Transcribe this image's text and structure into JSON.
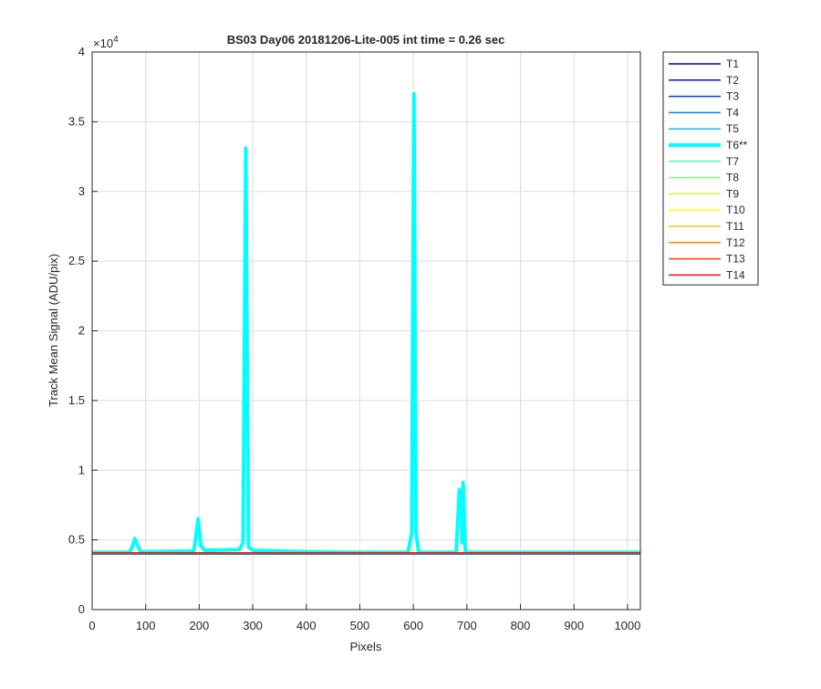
{
  "chart_data": {
    "type": "line",
    "title": "BS03 Day06 20181206-Lite-005 int time = 0.26 sec",
    "xlabel": "Pixels",
    "ylabel": "Track Mean Signal (ADU/pix)",
    "y_multiplier": {
      "base": "×10",
      "exponent": "4"
    },
    "xlim": [
      0,
      1024
    ],
    "xticks": [
      0,
      100,
      200,
      300,
      400,
      500,
      600,
      700,
      800,
      900,
      1000
    ],
    "ylim": [
      0,
      40000
    ],
    "yticks": [
      0,
      {
        "value": 5000,
        "label": "0.5"
      },
      {
        "value": 10000,
        "label": "1"
      },
      {
        "value": 15000,
        "label": "1.5"
      },
      {
        "value": 20000,
        "label": "2"
      },
      {
        "value": 25000,
        "label": "2.5"
      },
      {
        "value": 30000,
        "label": "3"
      },
      {
        "value": 35000,
        "label": "3.5"
      },
      {
        "value": 40000,
        "label": "4"
      }
    ],
    "grid": true,
    "legend": "outside-right",
    "series": [
      {
        "name": "T1",
        "color": "#00008f",
        "x": [
          0,
          1024
        ],
        "values": [
          3980,
          3980
        ]
      },
      {
        "name": "T2",
        "color": "#0010c8",
        "x": [
          0,
          1024
        ],
        "values": [
          3990,
          3990
        ]
      },
      {
        "name": "T3",
        "color": "#0040e0",
        "x": [
          0,
          1024
        ],
        "values": [
          4000,
          4000
        ]
      },
      {
        "name": "T4",
        "color": "#0080ff",
        "x": [
          0,
          1024
        ],
        "values": [
          4010,
          4010
        ]
      },
      {
        "name": "T5",
        "color": "#10b8ff",
        "x": [
          0,
          1024
        ],
        "values": [
          4020,
          4020
        ]
      },
      {
        "name": "T6**",
        "color": "#00ffff",
        "line_width": 4,
        "x": [
          0,
          70,
          75,
          80,
          85,
          90,
          190,
          195,
          198,
          203,
          210,
          275,
          282,
          287,
          292,
          300,
          400,
          500,
          590,
          597,
          601,
          605,
          610,
          680,
          686,
          689,
          691,
          693,
          697,
          700,
          1024
        ],
        "values": [
          4100,
          4100,
          4500,
          5100,
          4600,
          4150,
          4200,
          5600,
          6500,
          4600,
          4250,
          4300,
          4800,
          33100,
          4500,
          4250,
          4150,
          4100,
          4100,
          5500,
          37000,
          5500,
          4100,
          4100,
          8600,
          8600,
          4800,
          9100,
          4200,
          4100,
          4100
        ]
      },
      {
        "name": "T7",
        "color": "#40ffc0",
        "x": [
          0,
          1024
        ],
        "values": [
          4030,
          4030
        ]
      },
      {
        "name": "T8",
        "color": "#80ff80",
        "x": [
          0,
          1024
        ],
        "values": [
          4035,
          4035
        ]
      },
      {
        "name": "T9",
        "color": "#c0ff40",
        "x": [
          0,
          1024
        ],
        "values": [
          4040,
          4040
        ]
      },
      {
        "name": "T10",
        "color": "#ffff00",
        "x": [
          0,
          1024
        ],
        "values": [
          4045,
          4045
        ]
      },
      {
        "name": "T11",
        "color": "#ffc000",
        "x": [
          0,
          1024
        ],
        "values": [
          4050,
          4050
        ]
      },
      {
        "name": "T12",
        "color": "#ff8000",
        "x": [
          0,
          1024
        ],
        "values": [
          4055,
          4055
        ]
      },
      {
        "name": "T13",
        "color": "#ff4000",
        "x": [
          0,
          1024
        ],
        "values": [
          4060,
          4060
        ]
      },
      {
        "name": "T14",
        "color": "#e81010",
        "x": [
          0,
          1024
        ],
        "values": [
          4065,
          4065
        ]
      }
    ]
  }
}
